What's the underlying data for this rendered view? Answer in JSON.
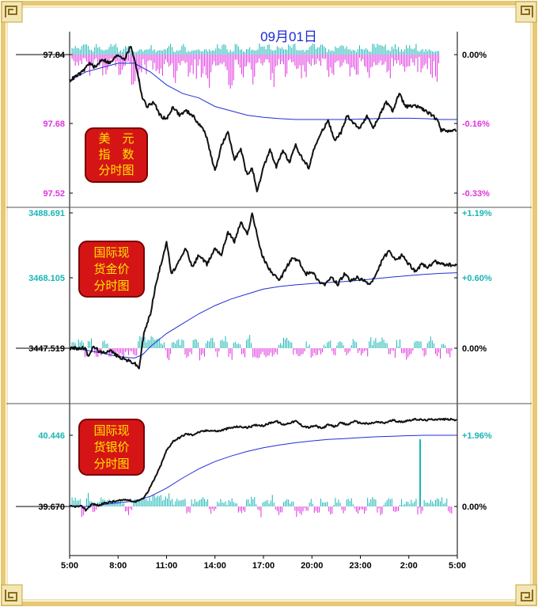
{
  "title": "09月01日",
  "colors": {
    "frame_gold": "#e7c873",
    "frame_inner": "#f4e6b4",
    "price_line": "#111111",
    "avg_line": "#1f2fd6",
    "up_bar": "#19b5b5",
    "down_bar": "#e033e0",
    "badge_red": "#d51515",
    "badge_text": "#ffe600",
    "title_blue": "#1a2bd6",
    "dxy_label": "#e033e0",
    "metal_label": "#19b5b5"
  },
  "x_axis": {
    "ticks": [
      "5:00",
      "8:00",
      "11:00",
      "14:00",
      "17:00",
      "20:00",
      "23:00",
      "2:00",
      "5:00"
    ]
  },
  "badges": {
    "dxy": [
      "美　元",
      "指　数",
      "分时图"
    ],
    "gold": [
      "国际现",
      "货金价",
      "分时图"
    ],
    "silver": [
      "国际现",
      "货银价",
      "分时图"
    ]
  },
  "chart_data": [
    {
      "type": "line",
      "name_key": "dxy",
      "left_ticks": [
        "97.84",
        "97.68",
        "97.52"
      ],
      "right_ticks": [
        "0.00%",
        "-0.16%",
        "-0.33%"
      ],
      "ylim": [
        97.52,
        97.84
      ],
      "pct_ylim": [
        -0.33,
        0.0
      ],
      "x_range_hours": [
        0,
        24
      ],
      "series": [
        {
          "values": [
            [
              0.0,
              97.78
            ],
            [
              0.4,
              97.79
            ],
            [
              0.8,
              97.8
            ],
            [
              1.2,
              97.82
            ],
            [
              1.6,
              97.81
            ],
            [
              2.0,
              97.83
            ],
            [
              2.5,
              97.82
            ],
            [
              3.0,
              97.84
            ],
            [
              3.4,
              97.83
            ],
            [
              3.8,
              97.86
            ],
            [
              4.2,
              97.8
            ],
            [
              4.5,
              97.74
            ],
            [
              4.8,
              97.72
            ],
            [
              5.2,
              97.73
            ],
            [
              5.6,
              97.7
            ],
            [
              6.0,
              97.69
            ],
            [
              6.4,
              97.72
            ],
            [
              6.8,
              97.7
            ],
            [
              7.2,
              97.71
            ],
            [
              7.6,
              97.7
            ],
            [
              8.0,
              97.68
            ],
            [
              8.4,
              97.66
            ],
            [
              8.8,
              97.6
            ],
            [
              9.0,
              97.57
            ],
            [
              9.4,
              97.63
            ],
            [
              9.8,
              97.66
            ],
            [
              10.2,
              97.6
            ],
            [
              10.6,
              97.62
            ],
            [
              11.0,
              97.56
            ],
            [
              11.3,
              97.58
            ],
            [
              11.6,
              97.52
            ],
            [
              12.0,
              97.58
            ],
            [
              12.4,
              97.62
            ],
            [
              12.8,
              97.58
            ],
            [
              13.2,
              97.62
            ],
            [
              13.6,
              97.59
            ],
            [
              14.0,
              97.63
            ],
            [
              14.4,
              97.6
            ],
            [
              14.8,
              97.58
            ],
            [
              15.2,
              97.63
            ],
            [
              15.6,
              97.66
            ],
            [
              16.0,
              97.69
            ],
            [
              16.4,
              97.64
            ],
            [
              16.8,
              97.66
            ],
            [
              17.2,
              97.7
            ],
            [
              17.6,
              97.68
            ],
            [
              18.0,
              97.67
            ],
            [
              18.4,
              97.7
            ],
            [
              18.8,
              97.67
            ],
            [
              19.2,
              97.7
            ],
            [
              19.6,
              97.73
            ],
            [
              20.0,
              97.71
            ],
            [
              20.4,
              97.75
            ],
            [
              20.8,
              97.72
            ],
            [
              21.2,
              97.72
            ],
            [
              21.6,
              97.72
            ],
            [
              22.0,
              97.71
            ],
            [
              22.4,
              97.7
            ],
            [
              22.8,
              97.69
            ],
            [
              23.0,
              97.665
            ],
            [
              23.4,
              97.665
            ],
            [
              24.0,
              97.665
            ]
          ]
        },
        {
          "values": [
            [
              0.0,
              97.78
            ],
            [
              1.0,
              97.8
            ],
            [
              2.0,
              97.81
            ],
            [
              3.0,
              97.82
            ],
            [
              4.0,
              97.82
            ],
            [
              5.0,
              97.8
            ],
            [
              6.0,
              97.77
            ],
            [
              7.0,
              97.75
            ],
            [
              8.0,
              97.74
            ],
            [
              9.0,
              97.72
            ],
            [
              10.0,
              97.71
            ],
            [
              11.0,
              97.7
            ],
            [
              12.0,
              97.695
            ],
            [
              13.0,
              97.692
            ],
            [
              14.0,
              97.69
            ],
            [
              15.0,
              97.69
            ],
            [
              16.0,
              97.69
            ],
            [
              17.0,
              97.69
            ],
            [
              18.0,
              97.691
            ],
            [
              19.0,
              97.692
            ],
            [
              20.0,
              97.693
            ],
            [
              21.0,
              97.693
            ],
            [
              22.0,
              97.692
            ],
            [
              23.0,
              97.69
            ],
            [
              24.0,
              97.69
            ]
          ]
        }
      ]
    },
    {
      "type": "line",
      "name_key": "gold",
      "left_ticks": [
        "3488.691",
        "3468.105",
        "3447.519"
      ],
      "right_ticks": [
        "+1.19%",
        "+0.60%",
        "0.00%"
      ],
      "ylim": [
        3447.519,
        3488.691
      ],
      "pct_ylim": [
        0.0,
        1.19
      ],
      "x_range_hours": [
        0,
        24
      ],
      "series": [
        {
          "values": [
            [
              0.0,
              3447.5
            ],
            [
              1.0,
              3447.5
            ],
            [
              1.1,
              3445.0
            ],
            [
              1.5,
              3448.0
            ],
            [
              2.0,
              3446.0
            ],
            [
              2.5,
              3447.0
            ],
            [
              3.0,
              3445.0
            ],
            [
              3.5,
              3444.0
            ],
            [
              4.0,
              3443.0
            ],
            [
              4.3,
              3441.5
            ],
            [
              4.6,
              3452.0
            ],
            [
              5.0,
              3458.0
            ],
            [
              5.3,
              3466.0
            ],
            [
              5.6,
              3472.0
            ],
            [
              6.0,
              3480.0
            ],
            [
              6.3,
              3470.0
            ],
            [
              6.8,
              3474.0
            ],
            [
              7.2,
              3478.0
            ],
            [
              7.6,
              3472.0
            ],
            [
              8.0,
              3476.0
            ],
            [
              8.5,
              3473.0
            ],
            [
              9.0,
              3478.0
            ],
            [
              9.4,
              3476.0
            ],
            [
              9.8,
              3483.0
            ],
            [
              10.2,
              3480.0
            ],
            [
              10.6,
              3486.0
            ],
            [
              11.0,
              3482.0
            ],
            [
              11.3,
              3488.6
            ],
            [
              11.6,
              3482.0
            ],
            [
              11.9,
              3476.0
            ],
            [
              12.2,
              3473.0
            ],
            [
              12.6,
              3470.0
            ],
            [
              13.0,
              3468.0
            ],
            [
              13.4,
              3472.0
            ],
            [
              13.8,
              3475.0
            ],
            [
              14.2,
              3474.0
            ],
            [
              14.6,
              3470.0
            ],
            [
              15.0,
              3471.0
            ],
            [
              15.4,
              3468.0
            ],
            [
              15.8,
              3467.0
            ],
            [
              16.2,
              3469.0
            ],
            [
              16.6,
              3467.0
            ],
            [
              17.0,
              3470.0
            ],
            [
              17.4,
              3468.0
            ],
            [
              17.8,
              3469.0
            ],
            [
              18.2,
              3468.0
            ],
            [
              18.6,
              3467.0
            ],
            [
              19.0,
              3470.0
            ],
            [
              19.4,
              3475.0
            ],
            [
              19.8,
              3477.0
            ],
            [
              20.2,
              3474.0
            ],
            [
              20.6,
              3476.0
            ],
            [
              21.0,
              3473.0
            ],
            [
              21.4,
              3471.0
            ],
            [
              21.8,
              3473.0
            ],
            [
              22.2,
              3472.0
            ],
            [
              22.6,
              3474.0
            ],
            [
              23.0,
              3473.0
            ],
            [
              23.4,
              3473.0
            ],
            [
              24.0,
              3472.5
            ]
          ]
        },
        {
          "values": [
            [
              0.0,
              3447.5
            ],
            [
              1.0,
              3447.0
            ],
            [
              2.0,
              3446.0
            ],
            [
              3.0,
              3445.0
            ],
            [
              4.0,
              3444.5
            ],
            [
              4.5,
              3445.5
            ],
            [
              5.0,
              3448.0
            ],
            [
              6.0,
              3452.0
            ],
            [
              7.0,
              3455.0
            ],
            [
              8.0,
              3458.0
            ],
            [
              9.0,
              3460.5
            ],
            [
              10.0,
              3462.5
            ],
            [
              11.0,
              3464.0
            ],
            [
              12.0,
              3465.5
            ],
            [
              13.0,
              3466.3
            ],
            [
              14.0,
              3466.8
            ],
            [
              15.0,
              3467.2
            ],
            [
              16.0,
              3467.5
            ],
            [
              17.0,
              3467.8
            ],
            [
              18.0,
              3468.2
            ],
            [
              19.0,
              3468.7
            ],
            [
              20.0,
              3469.2
            ],
            [
              21.0,
              3469.6
            ],
            [
              22.0,
              3470.0
            ],
            [
              23.0,
              3470.3
            ],
            [
              24.0,
              3470.5
            ]
          ]
        }
      ]
    },
    {
      "type": "line",
      "name_key": "silver",
      "left_ticks": [
        "40.446",
        "39.670"
      ],
      "right_ticks": [
        "+1.96%",
        "0.00%"
      ],
      "ylim": [
        39.67,
        40.446
      ],
      "pct_ylim": [
        0.0,
        1.96
      ],
      "x_range_hours": [
        0,
        24
      ],
      "series": [
        {
          "values": [
            [
              0.0,
              39.67
            ],
            [
              0.8,
              39.67
            ],
            [
              1.0,
              39.63
            ],
            [
              1.4,
              39.7
            ],
            [
              1.8,
              39.68
            ],
            [
              2.2,
              39.71
            ],
            [
              2.6,
              39.72
            ],
            [
              3.0,
              39.73
            ],
            [
              3.5,
              39.75
            ],
            [
              4.0,
              39.72
            ],
            [
              4.5,
              39.75
            ],
            [
              4.8,
              39.82
            ],
            [
              5.2,
              39.95
            ],
            [
              5.6,
              40.1
            ],
            [
              6.0,
              40.28
            ],
            [
              6.4,
              40.38
            ],
            [
              6.8,
              40.42
            ],
            [
              7.2,
              40.46
            ],
            [
              7.6,
              40.45
            ],
            [
              8.0,
              40.48
            ],
            [
              8.6,
              40.5
            ],
            [
              9.2,
              40.49
            ],
            [
              9.8,
              40.52
            ],
            [
              10.4,
              40.54
            ],
            [
              11.0,
              40.53
            ],
            [
              11.6,
              40.56
            ],
            [
              12.0,
              40.55
            ],
            [
              12.4,
              40.58
            ],
            [
              12.8,
              40.6
            ],
            [
              13.2,
              40.56
            ],
            [
              13.6,
              40.58
            ],
            [
              14.0,
              40.6
            ],
            [
              14.4,
              40.55
            ],
            [
              14.8,
              40.53
            ],
            [
              15.2,
              40.55
            ],
            [
              15.6,
              40.52
            ],
            [
              16.0,
              40.56
            ],
            [
              16.4,
              40.54
            ],
            [
              16.8,
              40.58
            ],
            [
              17.2,
              40.56
            ],
            [
              17.6,
              40.6
            ],
            [
              18.0,
              40.58
            ],
            [
              18.5,
              40.57
            ],
            [
              19.0,
              40.59
            ],
            [
              19.5,
              40.58
            ],
            [
              20.0,
              40.61
            ],
            [
              20.5,
              40.59
            ],
            [
              21.0,
              40.61
            ],
            [
              21.5,
              40.62
            ],
            [
              22.0,
              40.61
            ],
            [
              22.5,
              40.62
            ],
            [
              23.0,
              40.62
            ],
            [
              23.5,
              40.62
            ],
            [
              24.0,
              40.61
            ]
          ]
        },
        {
          "values": [
            [
              0.0,
              39.67
            ],
            [
              1.0,
              39.67
            ],
            [
              2.0,
              39.69
            ],
            [
              3.0,
              39.71
            ],
            [
              4.0,
              39.73
            ],
            [
              5.0,
              39.78
            ],
            [
              6.0,
              39.87
            ],
            [
              7.0,
              39.98
            ],
            [
              8.0,
              40.08
            ],
            [
              9.0,
              40.16
            ],
            [
              10.0,
              40.22
            ],
            [
              11.0,
              40.27
            ],
            [
              12.0,
              40.31
            ],
            [
              13.0,
              40.34
            ],
            [
              14.0,
              40.365
            ],
            [
              15.0,
              40.385
            ],
            [
              16.0,
              40.4
            ],
            [
              17.0,
              40.41
            ],
            [
              18.0,
              40.42
            ],
            [
              19.0,
              40.43
            ],
            [
              20.0,
              40.436
            ],
            [
              21.0,
              40.442
            ],
            [
              22.0,
              40.446
            ],
            [
              23.0,
              40.446
            ],
            [
              24.0,
              40.446
            ]
          ]
        }
      ]
    }
  ]
}
